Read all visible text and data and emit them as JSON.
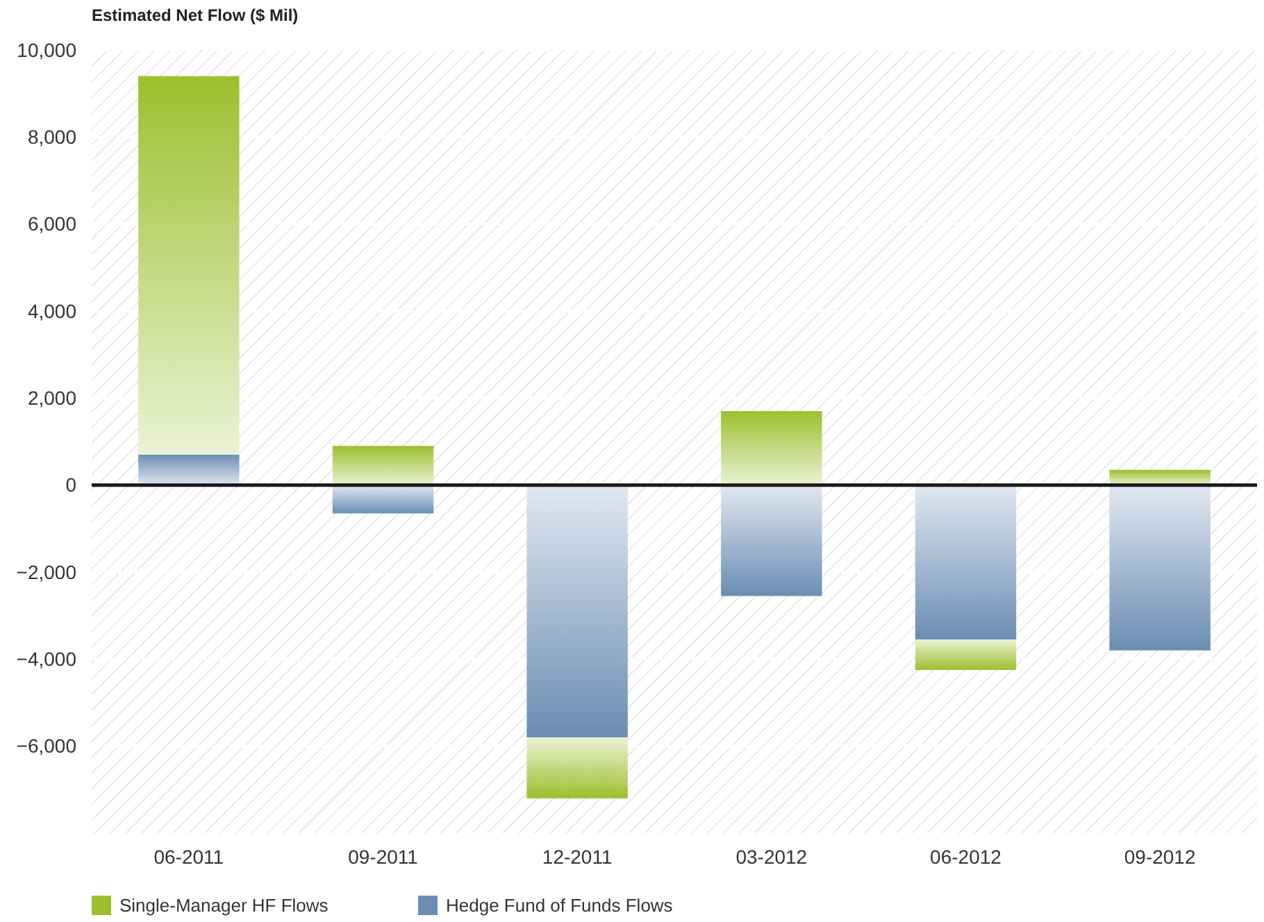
{
  "chart_data": {
    "type": "bar",
    "ylabel": "Estimated Net Flow ($ Mil)",
    "categories": [
      "06-2011",
      "09-2011",
      "12-2011",
      "03-2012",
      "06-2012",
      "09-2012"
    ],
    "stacked": true,
    "series": [
      {
        "name": "Hedge Fund of Funds Flows",
        "color": "#6b8db3",
        "values": [
          700,
          -650,
          -5800,
          -2550,
          -3550,
          -3800
        ]
      },
      {
        "name": "Single-Manager HF Flows",
        "color": "#9dbf2e",
        "values": [
          8700,
          900,
          -1400,
          1700,
          -700,
          350
        ]
      }
    ],
    "ylim": [
      -8000,
      10000
    ],
    "yticks": [
      {
        "value": -6000,
        "label": "−6,000"
      },
      {
        "value": -4000,
        "label": "−4,000"
      },
      {
        "value": -2000,
        "label": "−2,000"
      },
      {
        "value": 0,
        "label": "0"
      },
      {
        "value": 2000,
        "label": "2,000"
      },
      {
        "value": 4000,
        "label": "4,000"
      },
      {
        "value": 6000,
        "label": "6,000"
      },
      {
        "value": 8000,
        "label": "8,000"
      },
      {
        "value": 10000,
        "label": "10,000"
      }
    ],
    "grid": "y",
    "legend": "bottom"
  }
}
